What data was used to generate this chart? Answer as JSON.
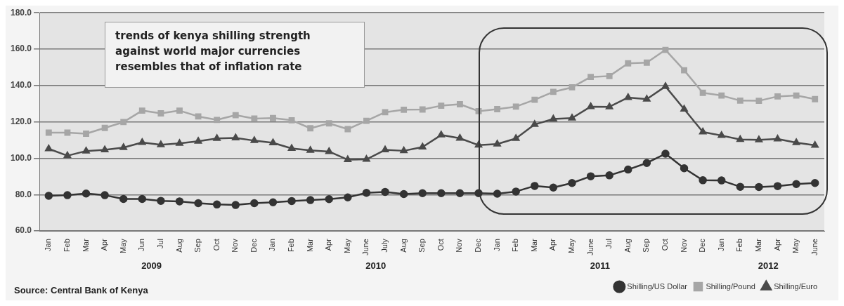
{
  "chart_data": {
    "type": "line",
    "x": [
      "2009-01",
      "2009-02",
      "2009-03",
      "2009-04",
      "2009-05",
      "2009-06",
      "2009-07",
      "2009-08",
      "2009-09",
      "2009-10",
      "2009-11",
      "2009-12",
      "2010-01",
      "2010-02",
      "2010-03",
      "2010-04",
      "2010-05",
      "2010-06",
      "2010-07",
      "2010-08",
      "2010-09",
      "2010-10",
      "2010-11",
      "2010-12",
      "2011-01",
      "2011-02",
      "2011-03",
      "2011-04",
      "2011-05",
      "2011-06",
      "2011-07",
      "2011-08",
      "2011-09",
      "2011-10",
      "2011-11",
      "2011-12",
      "2012-01",
      "2012-02",
      "2012-03",
      "2012-04",
      "2012-05",
      "2012-06"
    ],
    "xlim": [
      "2008-12-16",
      "2012-06-16"
    ],
    "xticks": [
      {
        "value": "2009-01",
        "label": "Jan"
      },
      {
        "value": "2009-02",
        "label": "Feb"
      },
      {
        "value": "2009-03",
        "label": "Mar"
      },
      {
        "value": "2009-04",
        "label": "Apr"
      },
      {
        "value": "2009-05",
        "label": "May"
      },
      {
        "value": "2009-06",
        "label": "Jun"
      },
      {
        "value": "2009-07",
        "label": "Jul"
      },
      {
        "value": "2009-08",
        "label": "Aug"
      },
      {
        "value": "2009-09",
        "label": "Sep"
      },
      {
        "value": "2009-10",
        "label": "Oct"
      },
      {
        "value": "2009-11",
        "label": "Nov"
      },
      {
        "value": "2009-12",
        "label": "Dec"
      },
      {
        "value": "2010-01",
        "label": "Jan"
      },
      {
        "value": "2010-02",
        "label": "Feb"
      },
      {
        "value": "2010-03",
        "label": "Mar"
      },
      {
        "value": "2010-04",
        "label": "Apr"
      },
      {
        "value": "2010-05",
        "label": "May"
      },
      {
        "value": "2010-06",
        "label": "June"
      },
      {
        "value": "2010-07",
        "label": "July"
      },
      {
        "value": "2010-08",
        "label": "Aug"
      },
      {
        "value": "2010-09",
        "label": "Sep"
      },
      {
        "value": "2010-10",
        "label": "Oct"
      },
      {
        "value": "2010-11",
        "label": "Nov"
      },
      {
        "value": "2010-12",
        "label": "Dec"
      },
      {
        "value": "2011-01",
        "label": "Jan"
      },
      {
        "value": "2011-02",
        "label": "Feb"
      },
      {
        "value": "2011-03",
        "label": "Mar"
      },
      {
        "value": "2011-04",
        "label": "Apr"
      },
      {
        "value": "2011-05",
        "label": "May"
      },
      {
        "value": "2011-06",
        "label": "June"
      },
      {
        "value": "2011-07",
        "label": "Jul"
      },
      {
        "value": "2011-08",
        "label": "Aug"
      },
      {
        "value": "2011-09",
        "label": "Sep"
      },
      {
        "value": "2011-10",
        "label": "Oct"
      },
      {
        "value": "2011-11",
        "label": "Nov"
      },
      {
        "value": "2011-12",
        "label": "Dec"
      },
      {
        "value": "2012-01",
        "label": "Jan"
      },
      {
        "value": "2012-02",
        "label": "Feb"
      },
      {
        "value": "2012-03",
        "label": "Mar"
      },
      {
        "value": "2012-04",
        "label": "Apr"
      },
      {
        "value": "2012-05",
        "label": "May"
      },
      {
        "value": "2012-06",
        "label": "June"
      }
    ],
    "ylim": [
      60,
      180
    ],
    "yticks": [
      {
        "value": 60,
        "label": "60.0"
      },
      {
        "value": 80,
        "label": "80.0"
      },
      {
        "value": 100,
        "label": "100.0"
      },
      {
        "value": 120,
        "label": "120.0"
      },
      {
        "value": 140,
        "label": "140.0"
      },
      {
        "value": 160,
        "label": "160.0"
      },
      {
        "value": 180,
        "label": "180.0"
      }
    ],
    "grid": "y",
    "legend": "bottom right",
    "series": [
      {
        "name": "Shilling/US Dollar",
        "color": "#333333",
        "marker": "circle",
        "values": [
          79.4,
          79.7,
          80.6,
          79.7,
          77.6,
          77.6,
          76.6,
          76.3,
          75.3,
          74.6,
          74.3,
          75.3,
          75.8,
          76.5,
          77,
          77.5,
          78.5,
          81,
          81.5,
          80.3,
          80.8,
          80.8,
          80.8,
          80.8,
          80.5,
          81.7,
          84.8,
          83.9,
          86.4,
          90.1,
          90.6,
          93.8,
          97.4,
          102.5,
          94.5,
          87.9,
          87.8,
          84.3,
          84.2,
          84.7,
          85.8,
          86.4
        ]
      },
      {
        "name": "Shilling/Pound",
        "color": "#a6a6a6",
        "marker": "square",
        "values": [
          114.1,
          114.1,
          113.5,
          116.7,
          119.9,
          126.2,
          124.7,
          126.2,
          123,
          121.1,
          123.7,
          121.8,
          122.1,
          120.9,
          116.5,
          119.2,
          116,
          120.6,
          125.3,
          126.7,
          126.8,
          128.9,
          129.7,
          125.9,
          127,
          128.4,
          132.2,
          136.5,
          139,
          144.7,
          145.2,
          152.2,
          152.6,
          159.6,
          148.4,
          136,
          134.5,
          131.7,
          131.6,
          134,
          134.5,
          132.5
        ]
      },
      {
        "name": "Shilling/Euro",
        "color": "#4a4a4a",
        "marker": "triangle",
        "values": [
          105.2,
          101.4,
          104,
          104.6,
          105.9,
          108.7,
          107.4,
          108.2,
          109.4,
          110.9,
          111.2,
          109.7,
          108.5,
          105.4,
          104.3,
          103.7,
          99.2,
          99.4,
          104.6,
          104.1,
          106.2,
          112.8,
          111,
          107.2,
          107.8,
          110.9,
          118.6,
          121.6,
          122.1,
          128.4,
          128.3,
          133.4,
          132.5,
          139.5,
          127,
          114.5,
          112.5,
          110.3,
          110.1,
          110.6,
          108.6,
          107.1
        ]
      }
    ],
    "annotations": [
      "trends of kenya shilling strength against world major currencies resembles that of inflation rate",
      "Source: Central Bank of Kenya",
      "2009",
      "2010",
      "2011",
      "2012"
    ]
  }
}
